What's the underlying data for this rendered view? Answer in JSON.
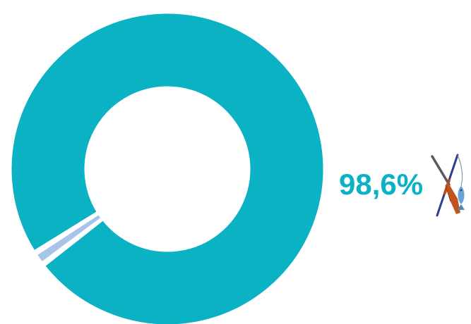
{
  "chart_data": {
    "type": "pie",
    "variant": "donut",
    "slices": [
      {
        "value": 98.6,
        "label": "98,6%",
        "color": "#0bb2c4"
      },
      {
        "value": 1.4,
        "color": "#a7c3e8"
      }
    ]
  },
  "annotation": {
    "label": "98,6%",
    "icon": "hunting-fishing-icon"
  },
  "colors": {
    "accent": "#0bb2c4",
    "secondary": "#a7c3e8",
    "background": "#ffffff"
  }
}
